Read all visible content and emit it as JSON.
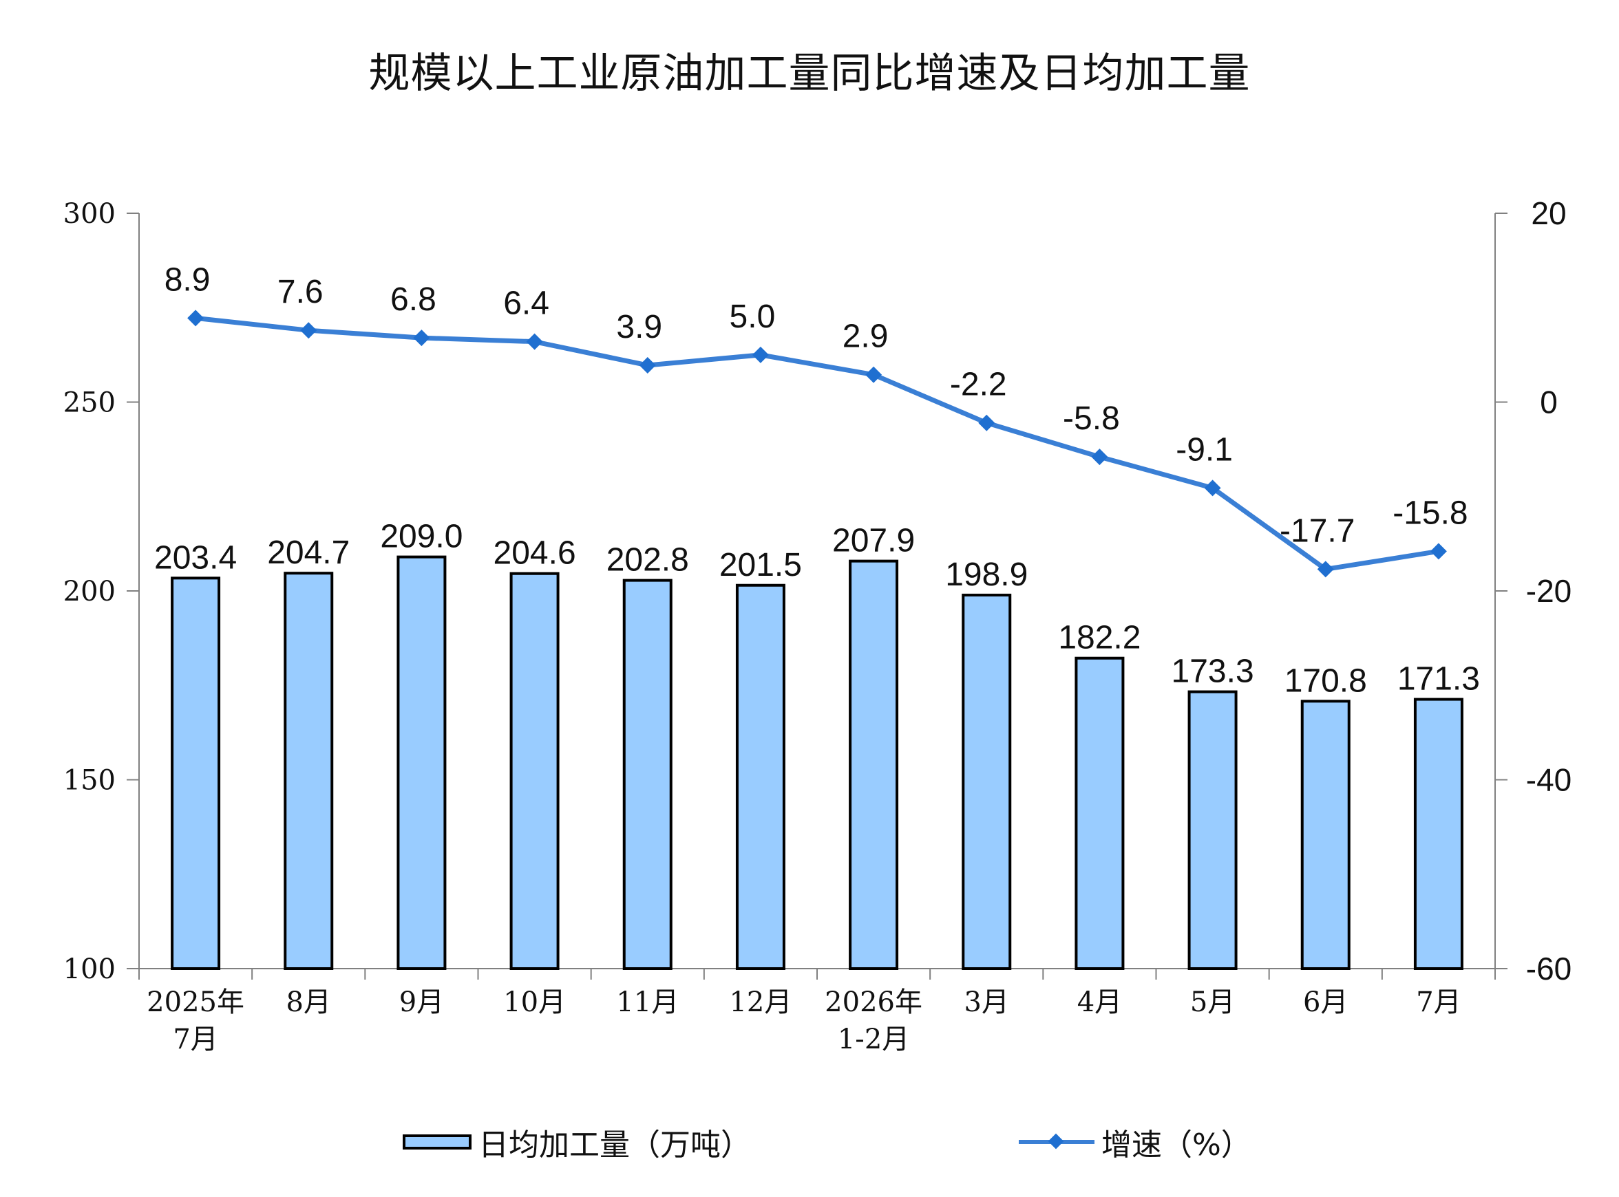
{
  "chart_data": {
    "type": "bar+line",
    "title": "规模以上工业原油加工量同比增速及日均加工量",
    "categories": [
      [
        "2025年",
        "7月"
      ],
      [
        "8月"
      ],
      [
        "9月"
      ],
      [
        "10月"
      ],
      [
        "11月"
      ],
      [
        "12月"
      ],
      [
        "2026年",
        "1-2月"
      ],
      [
        "3月"
      ],
      [
        "4月"
      ],
      [
        "5月"
      ],
      [
        "6月"
      ],
      [
        "7月"
      ]
    ],
    "series": [
      {
        "name": "日均加工量（万吨）",
        "type": "bar",
        "axis": "left",
        "values": [
          203.4,
          204.7,
          209.0,
          204.6,
          202.8,
          201.5,
          207.9,
          198.9,
          182.2,
          173.3,
          170.8,
          171.3
        ],
        "labels": [
          "203.4",
          "204.7",
          "209.0",
          "204.6",
          "202.8",
          "201.5",
          "207.9",
          "198.9",
          "182.2",
          "173.3",
          "170.8",
          "171.3"
        ]
      },
      {
        "name": "增速（%）",
        "type": "line",
        "axis": "right",
        "values": [
          8.9,
          7.6,
          6.8,
          6.4,
          3.9,
          5.0,
          2.9,
          -2.2,
          -5.8,
          -9.1,
          -17.7,
          -15.8
        ],
        "labels": [
          "8.9",
          "7.6",
          "6.8",
          "6.4",
          "3.9",
          "5.0",
          "2.9",
          "-2.2",
          "-5.8",
          "-9.1",
          "-17.7",
          "-15.8"
        ]
      }
    ],
    "left_axis": {
      "ylim": [
        100,
        300
      ],
      "ticks": [
        100,
        150,
        200,
        250,
        300
      ]
    },
    "right_axis": {
      "ylim": [
        -60,
        20
      ],
      "ticks": [
        -60,
        -40,
        -20,
        0,
        20
      ]
    },
    "grid": false,
    "legend": "bottom",
    "colors": {
      "bar_fill": "#99ccff",
      "bar_stroke": "#000000",
      "line": "#3a7fd5",
      "marker": "#1f6fd0"
    }
  },
  "legend": {
    "bar_label": "日均加工量（万吨）",
    "line_label": "增速（%）"
  }
}
